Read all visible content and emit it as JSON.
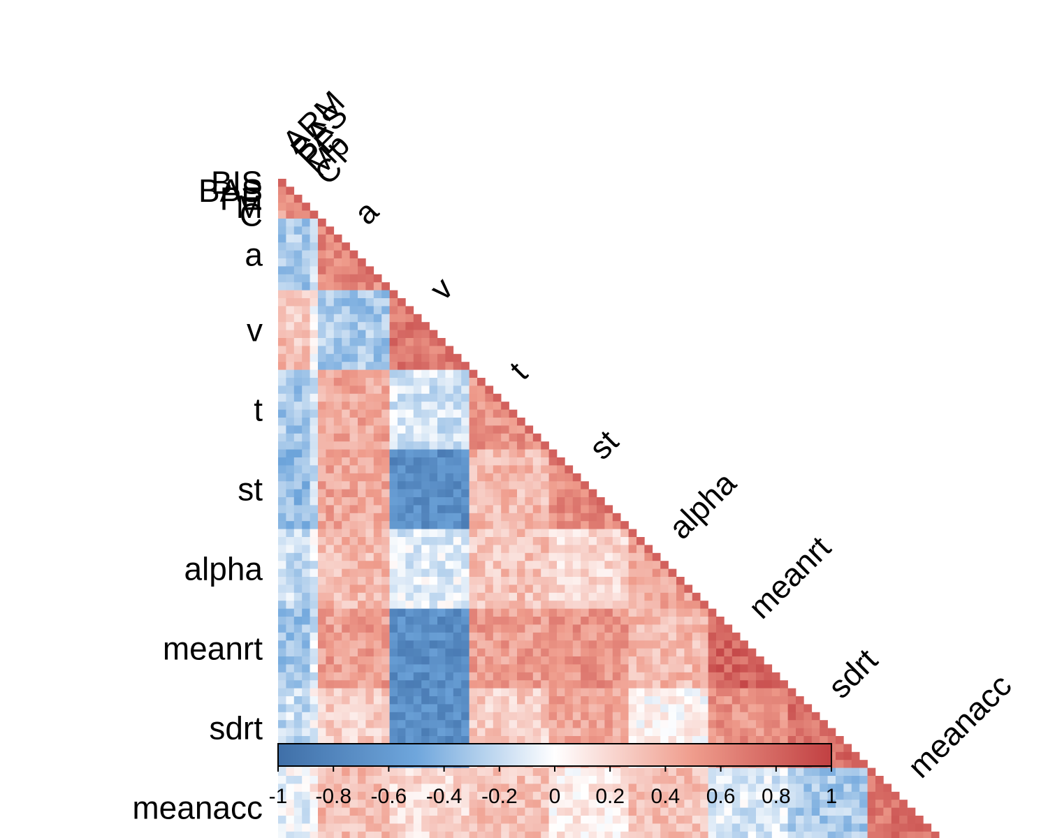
{
  "chart_data": {
    "type": "heatmap",
    "layout": "lower-triangular correlation matrix",
    "color_scale": {
      "min": -1,
      "max": 1,
      "stops": [
        {
          "value": -1,
          "color": "#3f6fa8"
        },
        {
          "value": -0.5,
          "color": "#6fa6dc"
        },
        {
          "value": 0,
          "color": "#ffffff"
        },
        {
          "value": 0.5,
          "color": "#ef9c8c"
        },
        {
          "value": 1,
          "color": "#c14042"
        }
      ],
      "tick_labels": [
        "-1",
        "-0.8",
        "-0.6",
        "-0.4",
        "-0.2",
        "0",
        "0.2",
        "0.4",
        "0.6",
        "0.8",
        "1"
      ],
      "tick_values": [
        -1,
        -0.8,
        -0.6,
        -0.4,
        -0.2,
        0,
        0.2,
        0.4,
        0.6,
        0.8,
        1
      ]
    },
    "groups": [
      {
        "name": "BIS",
        "vars": 1,
        "label_end": "ARM"
      },
      {
        "name": "BAS",
        "vars": 1,
        "label_end": "BAS"
      },
      {
        "name": "PE",
        "vars": 1,
        "label_end": "PE"
      },
      {
        "name": "M",
        "vars": 1,
        "label_end": "Mp"
      },
      {
        "name": "C",
        "vars": 1,
        "label_end": "C"
      },
      {
        "name": "a",
        "vars": 9
      },
      {
        "name": "v",
        "vars": 10
      },
      {
        "name": "t",
        "vars": 10
      },
      {
        "name": "st",
        "vars": 10
      },
      {
        "name": "alpha",
        "vars": 10
      },
      {
        "name": "meanrt",
        "vars": 10
      },
      {
        "name": "sdrt",
        "vars": 10
      },
      {
        "name": "meanacc",
        "vars": 10
      }
    ],
    "row_labels": [
      "BIS",
      "BAS",
      "PE",
      "M",
      "C",
      "a",
      "v",
      "t",
      "st",
      "alpha",
      "meanrt",
      "sdrt",
      "meanacc"
    ],
    "col_labels": [
      "ARM",
      "BAS",
      "PE",
      "Mp",
      "C",
      "a",
      "v",
      "t",
      "st",
      "alpha",
      "meanrt",
      "sdrt",
      "meanacc"
    ],
    "block_means": [
      [
        0.6
      ],
      [
        0.6,
        0.7
      ],
      [
        0.55,
        0.6,
        0.65
      ],
      [
        0.6,
        0.6,
        0.55,
        0.7
      ],
      [
        0.5,
        0.55,
        0.55,
        0.6,
        0.75
      ],
      [
        -0.3,
        -0.28,
        -0.3,
        -0.3,
        -0.15,
        0.6
      ],
      [
        0.35,
        0.3,
        0.3,
        0.3,
        0.05,
        -0.3,
        0.7
      ],
      [
        -0.3,
        -0.28,
        -0.3,
        -0.28,
        -0.12,
        0.45,
        -0.15,
        0.55
      ],
      [
        -0.4,
        -0.38,
        -0.4,
        -0.38,
        -0.2,
        0.45,
        -0.72,
        0.35,
        0.6
      ],
      [
        -0.2,
        -0.2,
        -0.2,
        -0.2,
        -0.1,
        0.35,
        -0.1,
        0.3,
        0.2,
        0.45
      ],
      [
        -0.35,
        -0.33,
        -0.35,
        -0.33,
        -0.15,
        0.5,
        -0.72,
        0.5,
        0.55,
        0.35,
        0.8
      ],
      [
        -0.2,
        -0.18,
        -0.2,
        -0.2,
        -0.05,
        0.25,
        -0.72,
        0.25,
        0.45,
        0.05,
        0.55,
        0.75
      ],
      [
        -0.08,
        -0.05,
        -0.08,
        -0.08,
        0.05,
        0.35,
        0.2,
        0.3,
        0.1,
        0.3,
        -0.12,
        -0.3,
        0.7
      ]
    ]
  },
  "icons": {
    "colorbar": "colorbar-legend"
  }
}
